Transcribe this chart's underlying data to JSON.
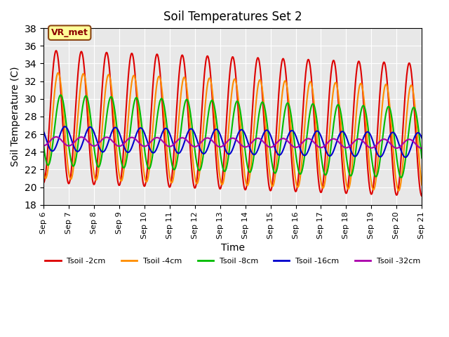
{
  "title": "Soil Temperatures Set 2",
  "xlabel": "Time",
  "ylabel": "Soil Temperature (C)",
  "ylim": [
    18,
    38
  ],
  "xlim_days": [
    0,
    15
  ],
  "background_color": "#e8e8e8",
  "figure_color": "#ffffff",
  "annotation_text": "VR_met",
  "annotation_box_color": "#ffff99",
  "annotation_border_color": "#8b4513",
  "grid_color": "#ffffff",
  "series": [
    {
      "label": "Tsoil -2cm",
      "color": "#dd0000",
      "amplitude": 7.5,
      "mean": 28.0,
      "phase_shift": 0.0,
      "period": 1.0,
      "mean_trend": -0.1
    },
    {
      "label": "Tsoil -4cm",
      "color": "#ff8c00",
      "amplitude": 6.0,
      "mean": 27.0,
      "phase_shift": 0.08,
      "period": 1.0,
      "mean_trend": -0.1
    },
    {
      "label": "Tsoil -8cm",
      "color": "#00bb00",
      "amplitude": 4.0,
      "mean": 26.5,
      "phase_shift": 0.18,
      "period": 1.0,
      "mean_trend": -0.1
    },
    {
      "label": "Tsoil -16cm",
      "color": "#0000cc",
      "amplitude": 1.4,
      "mean": 25.5,
      "phase_shift": 0.35,
      "period": 1.0,
      "mean_trend": -0.05
    },
    {
      "label": "Tsoil -32cm",
      "color": "#aa00aa",
      "amplitude": 0.5,
      "mean": 25.2,
      "phase_shift": 0.0,
      "period": 1.0,
      "mean_trend": -0.02
    }
  ],
  "xtick_labels": [
    "Sep 6",
    "Sep 7",
    "Sep 8",
    "Sep 9",
    "Sep 10",
    "Sep 11",
    "Sep 12",
    "Sep 13",
    "Sep 14",
    "Sep 15",
    "Sep 16",
    "Sep 17",
    "Sep 18",
    "Sep 19",
    "Sep 20",
    "Sep 21"
  ],
  "xtick_positions": [
    0,
    1,
    2,
    3,
    4,
    5,
    6,
    7,
    8,
    9,
    10,
    11,
    12,
    13,
    14,
    15
  ],
  "linewidth": 1.5,
  "n_points": 1500
}
